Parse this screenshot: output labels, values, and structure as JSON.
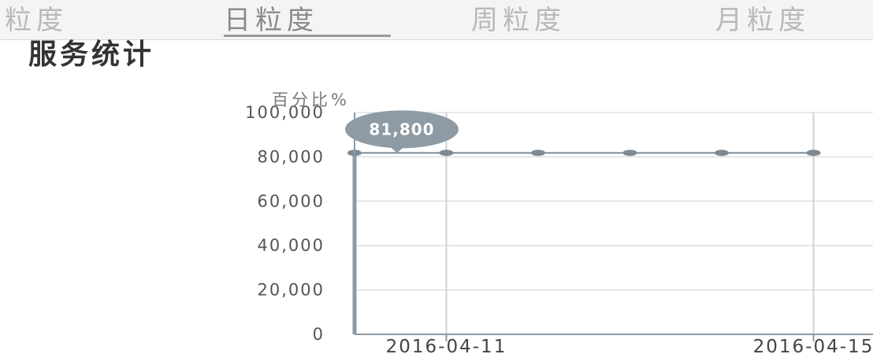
{
  "tabs": [
    {
      "label": "粒度",
      "active": false
    },
    {
      "label": "日粒度",
      "active": true
    },
    {
      "label": "周粒度",
      "active": false
    },
    {
      "label": "月粒度",
      "active": false
    }
  ],
  "page_title": "服务统计",
  "colors": {
    "line": "#7a8a96",
    "grid": "#d0d0d0",
    "cursor": "#8a9aa6",
    "tooltip": "#8e9aa4",
    "axis": "#8a9aa6"
  },
  "chart_data": {
    "type": "line",
    "ylabel": "百分比%",
    "ylim": [
      0,
      100000
    ],
    "y_ticks": [
      "0",
      "20,000",
      "40,000",
      "60,000",
      "80,000",
      "100,000"
    ],
    "x_ticks": [
      "2016-04-11",
      "2016-04-15"
    ],
    "x_range": [
      "2016-04-10",
      "2016-04-15"
    ],
    "series": [
      {
        "x": [
          "2016-04-10",
          "2016-04-11",
          "2016-04-12",
          "2016-04-13",
          "2016-04-14",
          "2016-04-15"
        ],
        "values": [
          81800,
          81800,
          81800,
          81800,
          81800,
          81800
        ]
      }
    ],
    "tooltip": {
      "x": "2016-04-10",
      "value": "81,800"
    },
    "grid": true
  }
}
